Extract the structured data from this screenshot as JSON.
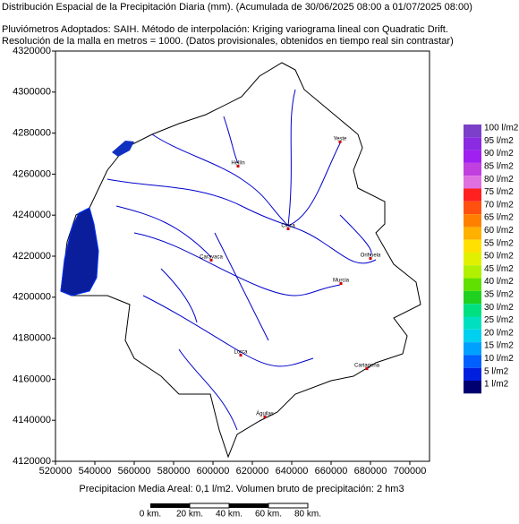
{
  "header": {
    "title": "Distribución Espacial de la Precipitación Diaria (mm). (Acumulada de 30/06/2025 08:00 a 01/07/2025 08:00)",
    "line2": "Pluviómetros Adoptados: SAIH.  Método de interpolación: Kriging variograma lineal con Quadratic Drift.",
    "line3": "Resolución de la malla en metros = 1000. (Datos provisionales, obtenidos en tiempo real sin contrastar)"
  },
  "map": {
    "xlim": [
      520000,
      710000
    ],
    "ylim": [
      4120000,
      4320000
    ],
    "xticks": [
      520000,
      540000,
      560000,
      580000,
      600000,
      620000,
      640000,
      660000,
      680000,
      700000
    ],
    "yticks": [
      4120000,
      4140000,
      4160000,
      4180000,
      4200000,
      4220000,
      4240000,
      4260000,
      4280000,
      4300000,
      4320000
    ],
    "cities": [
      "Yeste",
      "Hellín",
      "Cieza",
      "Orihuela",
      "Caravaca",
      "Murcia",
      "Lorca",
      "Cartagena",
      "Águilas"
    ]
  },
  "legend": [
    {
      "label": "100 l/m2",
      "color": "#7b3fc8"
    },
    {
      "label": "95 l/m2",
      "color": "#8a2be2"
    },
    {
      "label": "90 l/m2",
      "color": "#a020f0"
    },
    {
      "label": "85 l/m2",
      "color": "#c040e0"
    },
    {
      "label": "80 l/m2",
      "color": "#e070e0"
    },
    {
      "label": "75 l/m2",
      "color": "#ff2020"
    },
    {
      "label": "70 l/m2",
      "color": "#ff5010"
    },
    {
      "label": "65 l/m2",
      "color": "#ff8000"
    },
    {
      "label": "60 l/m2",
      "color": "#ffb000"
    },
    {
      "label": "55 l/m2",
      "color": "#ffe000"
    },
    {
      "label": "50 l/m2",
      "color": "#e0f000"
    },
    {
      "label": "45 l/m2",
      "color": "#b0f000"
    },
    {
      "label": "40 l/m2",
      "color": "#60e000"
    },
    {
      "label": "35 l/m2",
      "color": "#20d020"
    },
    {
      "label": "30 l/m2",
      "color": "#00e080"
    },
    {
      "label": "25 l/m2",
      "color": "#00e0c0"
    },
    {
      "label": "20 l/m2",
      "color": "#00d0f0"
    },
    {
      "label": "15 l/m2",
      "color": "#00a0ff"
    },
    {
      "label": "10 l/m2",
      "color": "#0060ff"
    },
    {
      "label": "5 l/m2",
      "color": "#0020e0"
    },
    {
      "label": "1 l/m2",
      "color": "#000070"
    }
  ],
  "footer": "Precipitacion Media Areal: 0,1 l/m2. Volumen bruto de precipitación: 2 hm3",
  "scale": [
    "0 km.",
    "20 km.",
    "40 km.",
    "60 km.",
    "80 km."
  ]
}
